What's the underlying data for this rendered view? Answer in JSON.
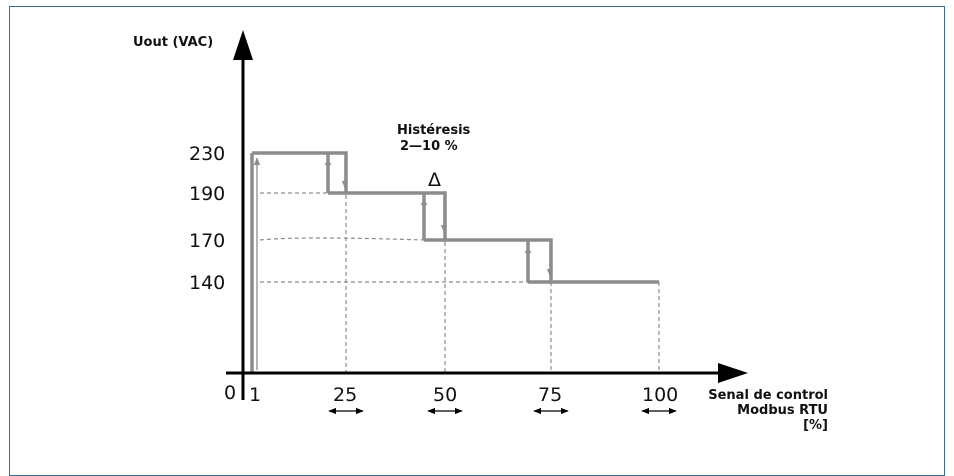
{
  "y_axis_label": "Uout (VAC)",
  "x_axis_label_lines": [
    "Senal de control",
    "Modbus RTU",
    "[%]"
  ],
  "origin_label": "0",
  "hysteresis_title": "Histéresis",
  "hysteresis_range": "2—10 %",
  "delta_symbol": "Δ",
  "chart_data": {
    "type": "line",
    "y_ticks": [
      "230",
      "190",
      "170",
      "140"
    ],
    "x_ticks": [
      "1",
      "25",
      "50",
      "75",
      "100"
    ],
    "series": [
      {
        "x": [
          1,
          25,
          25,
          50,
          50,
          75,
          75,
          100
        ],
        "y": [
          230,
          230,
          190,
          190,
          170,
          170,
          140,
          140
        ]
      }
    ],
    "hysteresis_offsets_percent": [
      5,
      5,
      5
    ],
    "colors": {
      "curve": "#8c8c8c",
      "axis": "#000000",
      "frame": "#3a6f98",
      "guide": "#8c8c8c"
    }
  }
}
